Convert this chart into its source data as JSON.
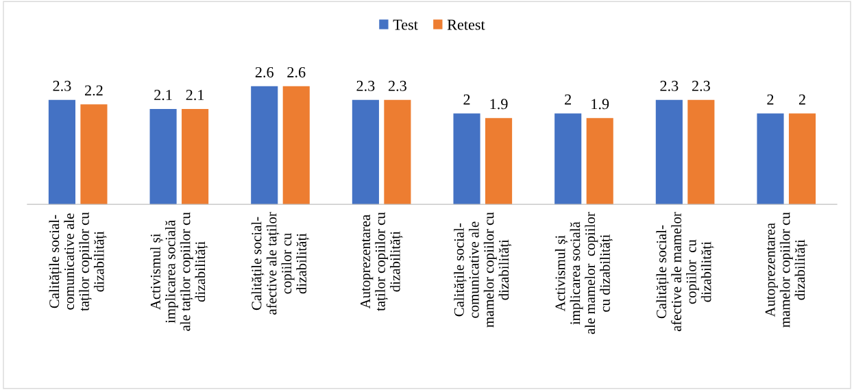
{
  "chart_data": {
    "type": "bar",
    "categories": [
      "Calitățile social-\ncomunicative ale\ntaților copiilor cu\ndizabilități",
      "Activismul și\nimplicarea socială\nale taților copiilor cu\ndizabilități",
      "Calitățile social-\nafective ale taților\ncopiilor cu\ndizabilități",
      "Autoprezentarea\ntaților copiilor cu\ndizabilități",
      "Calitățile social-\ncomunicative ale\nmamelor copiilor cu\ndizabilități",
      "Activismul și\nimplicarea socială\nale mamelor  copiilor\ncu dizabilități",
      "Calitățile social-\nafective ale mamelor\ncopiilor  cu\ndizabilități",
      "Autoprezentarea\nmamelor copiilor cu\ndizabilități"
    ],
    "series": [
      {
        "name": "Test",
        "color": "#4472c4",
        "values": [
          2.3,
          2.1,
          2.6,
          2.3,
          2.0,
          2.0,
          2.3,
          2.0
        ],
        "value_labels": [
          "2.3",
          "2.1",
          "2.6",
          "2.3",
          "2",
          "2",
          "2.3",
          "2"
        ]
      },
      {
        "name": "Retest",
        "color": "#ed7d31",
        "values": [
          2.2,
          2.1,
          2.6,
          2.3,
          1.9,
          1.9,
          2.3,
          2.0
        ],
        "value_labels": [
          "2.2",
          "2.1",
          "2.6",
          "2.3",
          "1.9",
          "1.9",
          "2.3",
          "2"
        ]
      }
    ],
    "legend": "top",
    "grid": false
  }
}
